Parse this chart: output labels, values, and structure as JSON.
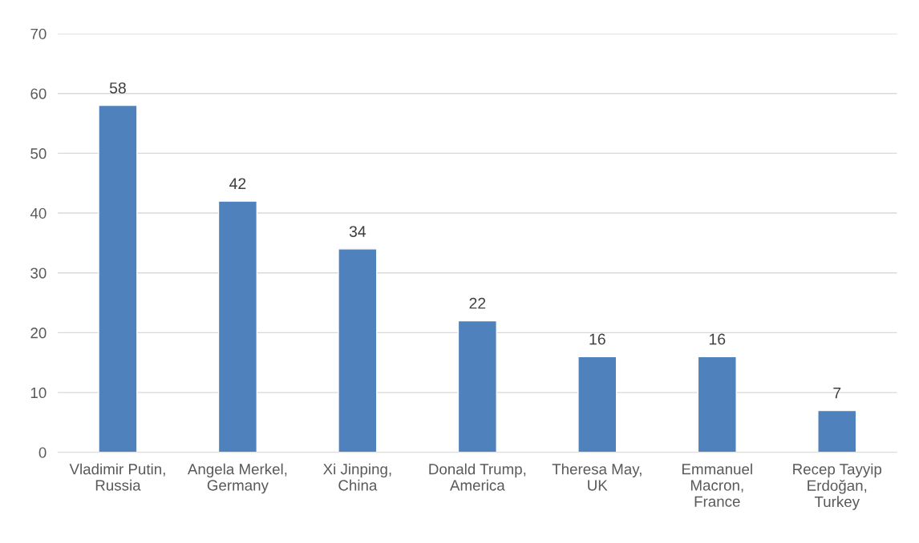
{
  "chart_data": {
    "type": "bar",
    "categories": [
      "Vladimir Putin,\nRussia",
      "Angela Merkel,\nGermany",
      "Xi Jinping,\nChina",
      "Donald Trump,\nAmerica",
      "Theresa May,\nUK",
      "Emmanuel\nMacron,\nFrance",
      "Recep Tayyip\nErdoğan,\nTurkey"
    ],
    "values": [
      58,
      42,
      34,
      22,
      16,
      16,
      7
    ],
    "color": "#4f81bd",
    "ylim": [
      0,
      70
    ],
    "yticks": [
      0,
      10,
      20,
      30,
      40,
      50,
      60,
      70
    ],
    "grid": "y",
    "data_labels": true
  }
}
